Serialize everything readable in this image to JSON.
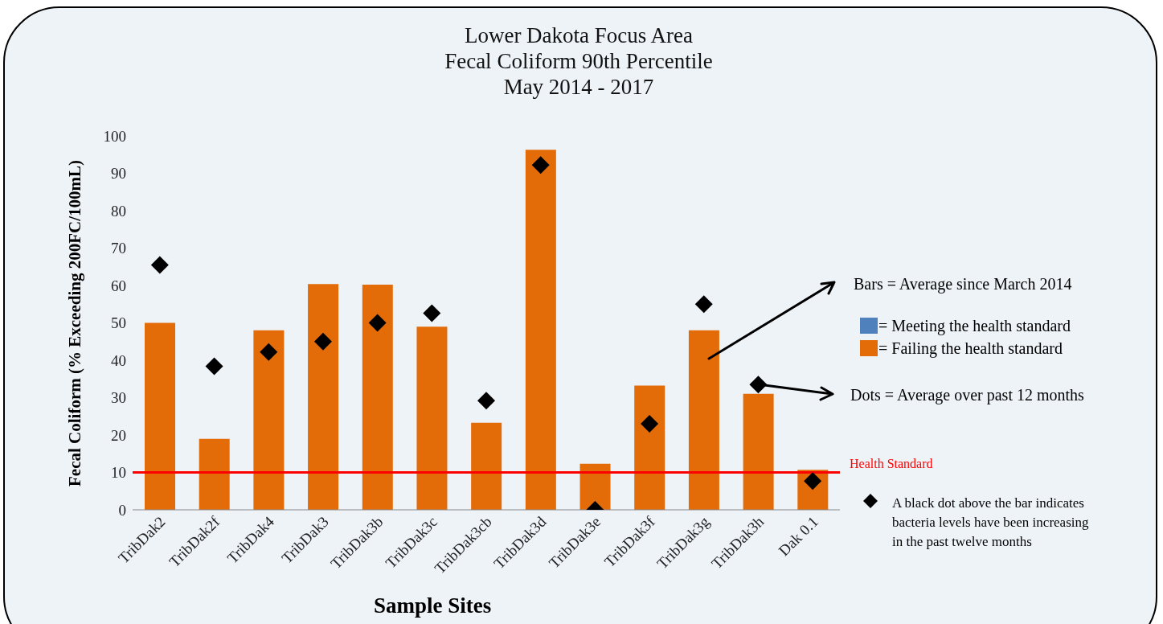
{
  "chart_data": {
    "type": "bar",
    "title": "Lower Dakota Focus Area\nFecal Coliform 90th Percentile\nMay 2014 - 2017",
    "xlabel": "Sample Sites",
    "ylabel": "Fecal Coliform (% Exceeding 200FC/100mL)",
    "categories": [
      "TribDak2",
      "TribDak2f",
      "TribDak4",
      "TribDak3",
      "TribDak3b",
      "TribDak3c",
      "TribDak3cb",
      "TribDak3d",
      "TribDak3e",
      "TribDak3f",
      "TribDak3g",
      "TribDak3h",
      "Dak 0.1"
    ],
    "series": [
      {
        "color": "#e36c09",
        "values": [
          50,
          19,
          48,
          60.4,
          60.2,
          49,
          23.3,
          96.3,
          12.3,
          33.2,
          48,
          31,
          10.7
        ]
      },
      {
        "type": "scatter",
        "color": "#000000",
        "values": [
          65.5,
          38.4,
          42.2,
          45,
          50,
          52.6,
          29.2,
          92.2,
          0,
          23,
          55,
          33.5,
          7.7
        ]
      }
    ],
    "marker": "diamond",
    "ylim": [
      0,
      100
    ],
    "yticks": [
      0,
      10,
      20,
      30,
      40,
      50,
      60,
      70,
      80,
      90,
      100
    ],
    "grid": false,
    "ref_lines": [
      {
        "axis": "y",
        "value": 10,
        "label": "Health Standard",
        "color": "#ff0000"
      }
    ],
    "annotations": [
      "Bars = Average since March 2014",
      "= Meeting the health standard",
      "= Failing the health standard",
      "Dots = Average over past 12 months",
      "A black dot above the bar indicates bacteria levels have been increasing in the past twelve months"
    ]
  }
}
